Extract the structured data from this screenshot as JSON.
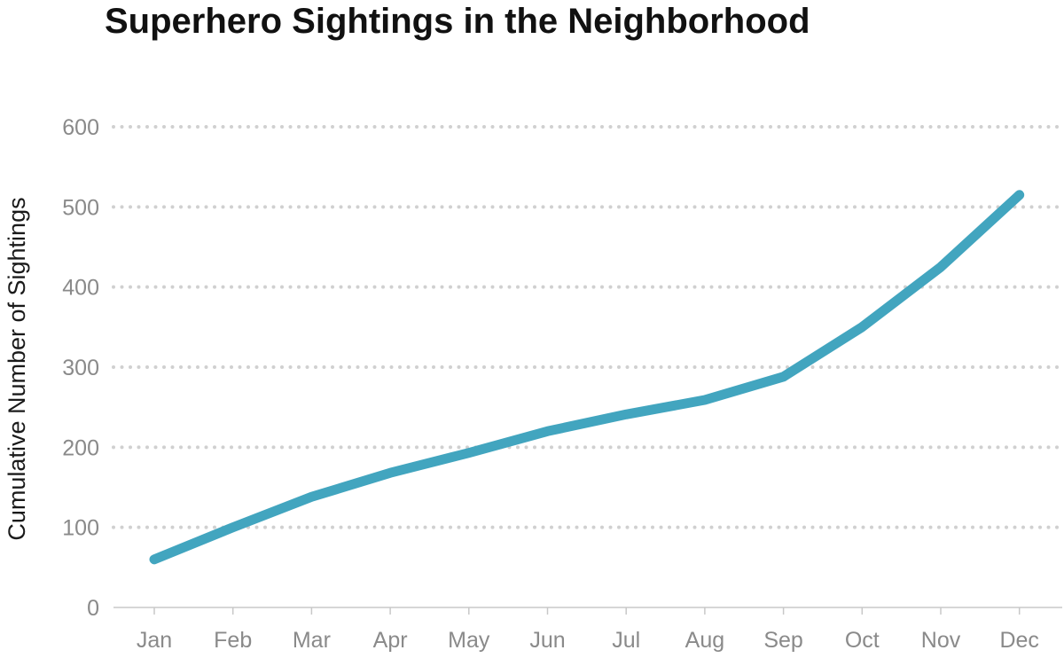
{
  "chart_data": {
    "type": "line",
    "title": "Superhero Sightings in the Neighborhood",
    "xlabel": "",
    "ylabel": "Cumulative Number of Sightings",
    "categories": [
      "Jan",
      "Feb",
      "Mar",
      "Apr",
      "May",
      "Jun",
      "Jul",
      "Aug",
      "Sep",
      "Oct",
      "Nov",
      "Dec"
    ],
    "series": [
      {
        "values": [
          60,
          100,
          138,
          168,
          193,
          220,
          241,
          259,
          288,
          350,
          425,
          515
        ],
        "color": "#42a5bf"
      }
    ],
    "ylim": [
      0,
      600
    ],
    "yticks": [
      0,
      100,
      200,
      300,
      400,
      500,
      600
    ],
    "grid": true,
    "grid_style": "dotted",
    "legend": "none",
    "colors": {
      "line": "#42a5bf",
      "grid": "#d0d0d0",
      "tick_text": "#8a8a8a",
      "title": "#111111",
      "axis": "#c8c8c8"
    }
  }
}
